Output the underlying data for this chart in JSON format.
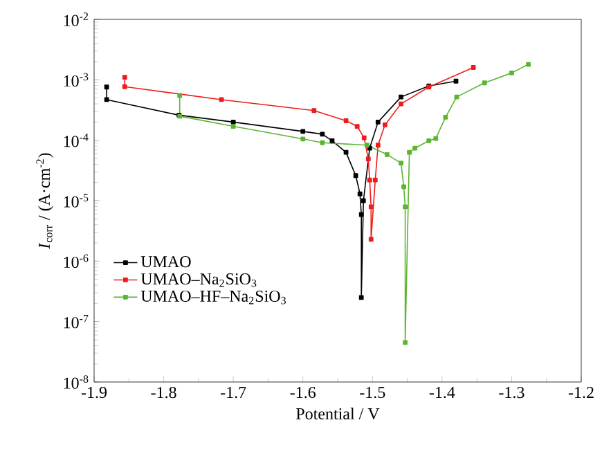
{
  "chart_data": {
    "type": "line",
    "xlabel": "Potential / V",
    "ylabel": "*I*$_{corr}$ / (A·cm$^{-2}$)",
    "log": "y",
    "marker": "square",
    "line_style": "solid",
    "legend": "bottom left",
    "grid": false,
    "xlim": [
      -1.9,
      -1.2
    ],
    "xticks": [
      -1.9,
      -1.8,
      -1.7,
      -1.6,
      -1.5,
      -1.4,
      -1.3,
      -1.2
    ],
    "ylim": [
      1e-08,
      0.01
    ],
    "yticks": [
      {
        "value": 1e-08,
        "label": "10$^{-8}$"
      },
      {
        "value": 1e-07,
        "label": "10$^{-7}$"
      },
      {
        "value": 1e-06,
        "label": "10$^{-6}$"
      },
      {
        "value": 1e-05,
        "label": "10$^{-5}$"
      },
      {
        "value": 0.0001,
        "label": "10$^{-4}$"
      },
      {
        "value": 0.001,
        "label": "10$^{-3}$"
      },
      {
        "value": 0.01,
        "label": "10$^{-2}$"
      }
    ],
    "series": [
      {
        "name": "UMAO",
        "color": "#000000",
        "x": [
          -1.882,
          -1.882,
          -1.778,
          -1.7,
          -1.6,
          -1.572,
          -1.558,
          -1.538,
          -1.524,
          -1.518,
          -1.516,
          -1.516,
          -1.513,
          -1.504,
          -1.492,
          -1.459,
          -1.419,
          -1.38
        ],
        "values": [
          0.00076,
          0.00047,
          0.00026,
          0.0002,
          0.00014,
          0.000126,
          9.8e-05,
          6.3e-05,
          2.6e-05,
          1.3e-05,
          5.9e-06,
          2.5e-07,
          1e-05,
          7.4e-05,
          0.0002,
          0.00052,
          0.00079,
          0.00095
        ]
      },
      {
        "name": "UMAO–Na$_{2}$SiO$_{3}$",
        "color": "#ee1c1c",
        "x": [
          -1.856,
          -1.856,
          -1.717,
          -1.584,
          -1.538,
          -1.522,
          -1.512,
          -1.506,
          -1.504,
          -1.502,
          -1.502,
          -1.496,
          -1.492,
          -1.482,
          -1.459,
          -1.419,
          -1.355
        ],
        "values": [
          0.0011,
          0.00077,
          0.00047,
          0.00031,
          0.00021,
          0.00017,
          0.00011,
          4.9e-05,
          2.2e-05,
          7.9e-06,
          2.3e-06,
          2.2e-05,
          8.3e-05,
          0.00018,
          0.0004,
          0.00076,
          0.0016
        ]
      },
      {
        "name": "UMAO–HF–Na$_{2}$SiO$_{3}$",
        "color": "#5cb531",
        "x": [
          -1.777,
          -1.777,
          -1.7,
          -1.6,
          -1.572,
          -1.508,
          -1.479,
          -1.459,
          -1.455,
          -1.453,
          -1.453,
          -1.447,
          -1.439,
          -1.419,
          -1.409,
          -1.395,
          -1.379,
          -1.339,
          -1.3,
          -1.276
        ],
        "values": [
          0.00055,
          0.00025,
          0.00017,
          0.000105,
          9.1e-05,
          8.3e-05,
          5.8e-05,
          4.2e-05,
          1.7e-05,
          7.9e-06,
          4.5e-08,
          6.3e-05,
          7.4e-05,
          9.8e-05,
          0.000107,
          0.00024,
          0.00052,
          0.00089,
          0.0013,
          0.0018
        ]
      }
    ]
  }
}
